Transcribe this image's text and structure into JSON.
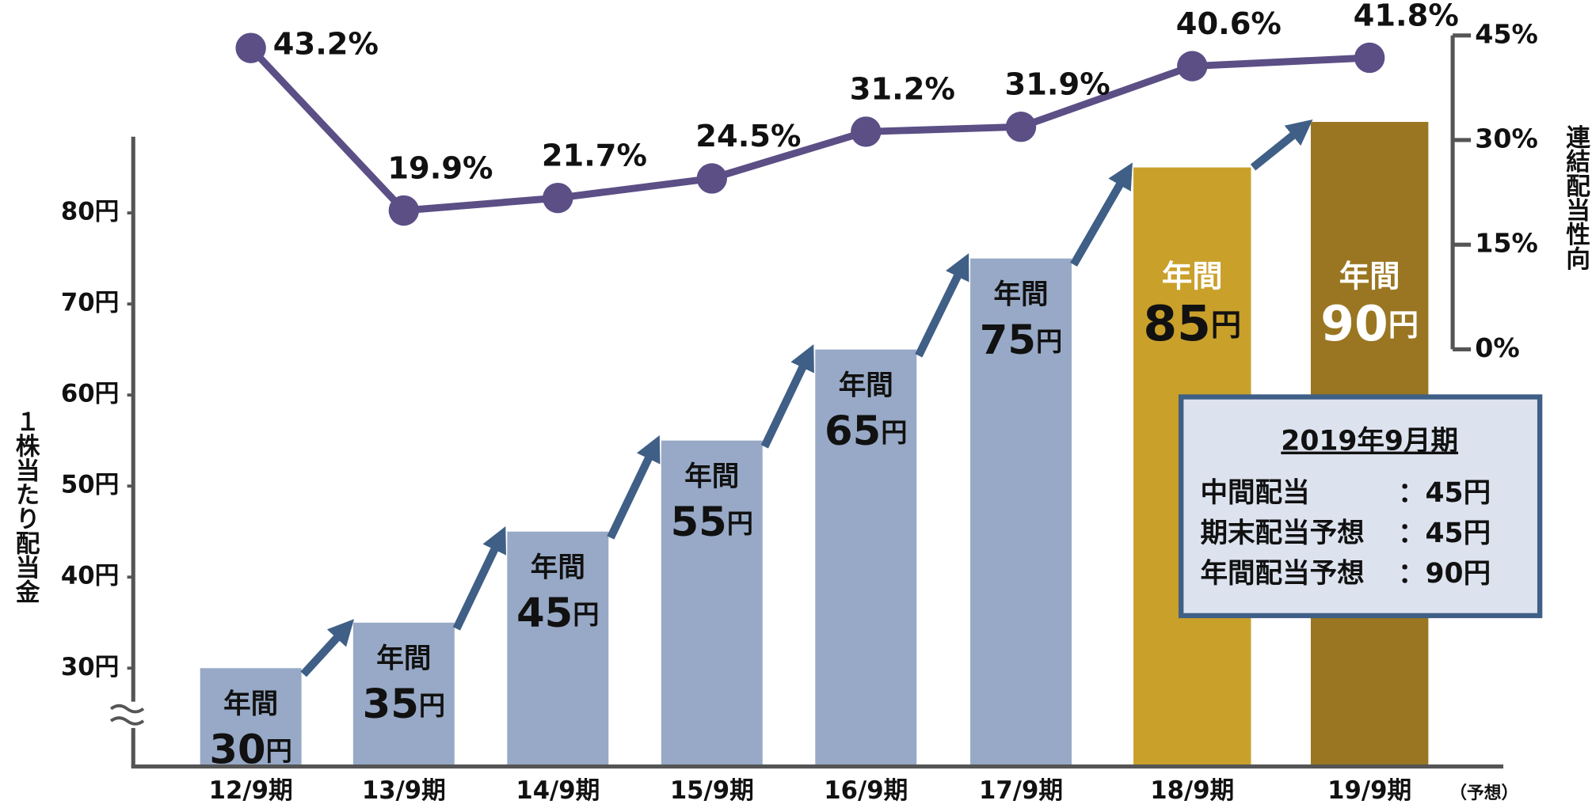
{
  "chart_data": {
    "type": "bar",
    "y_axis_label": "１株当たり配当金",
    "y2_axis_label": "連結配当性向",
    "categories": [
      "12/9期",
      "13/9期",
      "14/9期",
      "15/9期",
      "16/9期",
      "17/9期",
      "18/9期",
      "19/9期"
    ],
    "forecast_note": "（予想）",
    "bar_label_prefix": "年間",
    "series": [
      {
        "name": "年間配当",
        "colors": [
          "#97a9c6",
          "#97a9c6",
          "#97a9c6",
          "#97a9c6",
          "#97a9c6",
          "#97a9c6",
          "#c9a02a",
          "#9a7622"
        ],
        "values": [
          30,
          35,
          45,
          55,
          65,
          75,
          85,
          90
        ],
        "value_labels": [
          "30円",
          "35円",
          "45円",
          "55円",
          "65円",
          "75円",
          "85円",
          "90円"
        ]
      },
      {
        "name": "連結配当性向",
        "type": "line",
        "axis": "y2",
        "color": "#5b4f86",
        "values": [
          43.2,
          19.9,
          21.7,
          24.5,
          31.2,
          31.9,
          40.6,
          41.8
        ],
        "value_labels": [
          "43.2%",
          "19.9%",
          "21.7%",
          "24.5%",
          "31.2%",
          "31.9%",
          "40.6%",
          "41.8%"
        ]
      }
    ],
    "ylim": [
      19.2,
      90
    ],
    "yticks": [
      {
        "value": 30,
        "label": "30円"
      },
      {
        "value": 40,
        "label": "40円"
      },
      {
        "value": 50,
        "label": "50円"
      },
      {
        "value": 60,
        "label": "60円"
      },
      {
        "value": 70,
        "label": "70円"
      },
      {
        "value": 80,
        "label": "80円"
      }
    ],
    "y2lim": [
      0,
      45
    ],
    "y2ticks": [
      {
        "value": 0,
        "label": "0%"
      },
      {
        "value": 15,
        "label": "15%"
      },
      {
        "value": 30,
        "label": "30%"
      },
      {
        "value": 45,
        "label": "45%"
      }
    ],
    "info_box": {
      "title": "2019年9月期",
      "rows": [
        [
          "中間配当",
          "：45円"
        ],
        [
          "期末配当予想",
          "：45円"
        ],
        [
          "年間配当予想",
          "：90円"
        ]
      ]
    }
  }
}
